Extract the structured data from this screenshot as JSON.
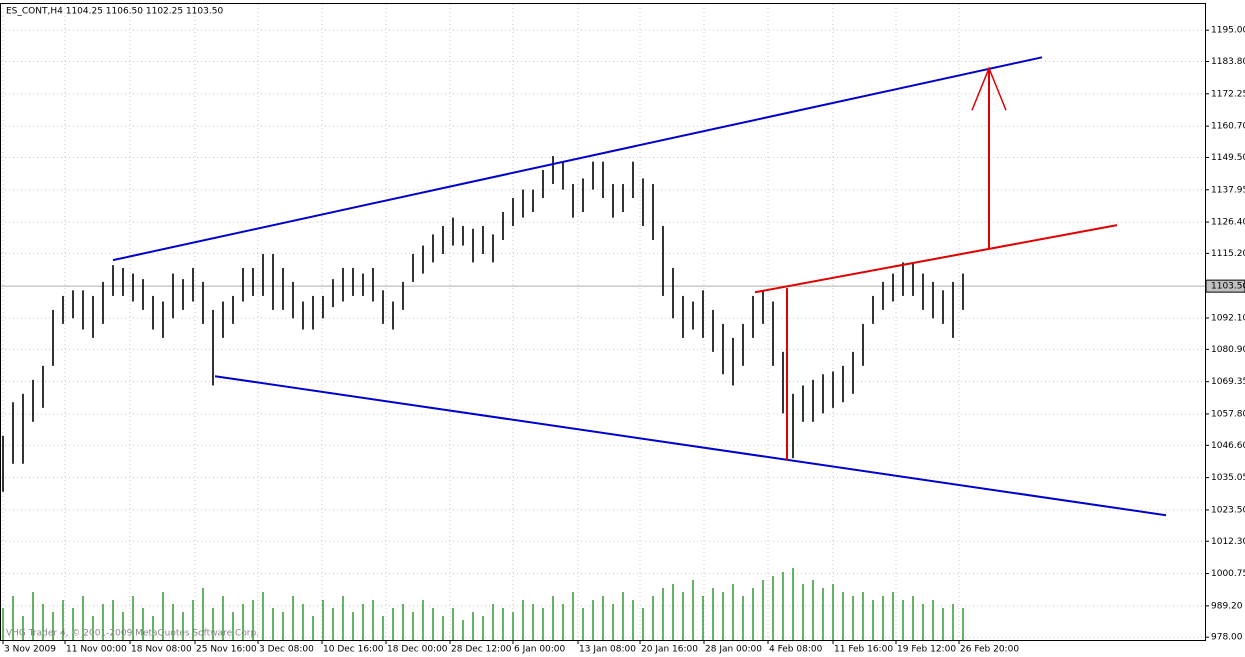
{
  "chart_data": {
    "type": "ohlc",
    "title": "ES_CONT,H4  1104.25 1106.50 1102.25 1103.50",
    "copyright": "VHG Trader 4, © 2001-2009 MetaQuotes Software Corp.",
    "xlim": [
      0,
      120
    ],
    "ylim": [
      977,
      1204
    ],
    "xticks": [
      {
        "value": 0,
        "label": "3 Nov 2009"
      },
      {
        "value": 6.2,
        "label": "11 Nov 00:00"
      },
      {
        "value": 12.7,
        "label": "18 Nov 08:00"
      },
      {
        "value": 19.2,
        "label": "25 Nov 16:00"
      },
      {
        "value": 25.5,
        "label": "3 Dec 08:00"
      },
      {
        "value": 31.9,
        "label": "10 Dec 16:00"
      },
      {
        "value": 38.3,
        "label": "18 Dec 00:00"
      },
      {
        "value": 44.7,
        "label": "28 Dec 12:00"
      },
      {
        "value": 51,
        "label": "6 Jan 00:00"
      },
      {
        "value": 57.5,
        "label": "13 Jan 08:00"
      },
      {
        "value": 63.7,
        "label": "20 Jan 16:00"
      },
      {
        "value": 70.1,
        "label": "28 Jan 00:00"
      },
      {
        "value": 76.5,
        "label": "4 Feb 08:00"
      },
      {
        "value": 83,
        "label": "11 Feb 16:00"
      },
      {
        "value": 89.3,
        "label": "19 Feb 12:00"
      },
      {
        "value": 95.6,
        "label": "26 Feb 20:00"
      }
    ],
    "yticks": [
      {
        "value": 1195,
        "label": "1195.00"
      },
      {
        "value": 1183.8,
        "label": "1183.80"
      },
      {
        "value": 1172.25,
        "label": "1172.25"
      },
      {
        "value": 1160.7,
        "label": "1160.70"
      },
      {
        "value": 1149.5,
        "label": "1149.50"
      },
      {
        "value": 1137.95,
        "label": "1137.95"
      },
      {
        "value": 1126.4,
        "label": "1126.40"
      },
      {
        "value": 1115.2,
        "label": "1115.20"
      },
      {
        "value": 1103.5,
        "label": "1103.50"
      },
      {
        "value": 1092.1,
        "label": "1092.10"
      },
      {
        "value": 1080.9,
        "label": "1080.90"
      },
      {
        "value": 1069.35,
        "label": "1069.35"
      },
      {
        "value": 1057.8,
        "label": "1057.80"
      },
      {
        "value": 1046.6,
        "label": "1046.60"
      },
      {
        "value": 1035.05,
        "label": "1035.05"
      },
      {
        "value": 1023.5,
        "label": "1023.50"
      },
      {
        "value": 1012.3,
        "label": "1012.30"
      },
      {
        "value": 1000.75,
        "label": "1000.75"
      },
      {
        "value": 989.2,
        "label": "989.20"
      },
      {
        "value": 978,
        "label": "978.00"
      }
    ],
    "last_price": 1103.5,
    "grid": true,
    "color": "#000000",
    "volume_color": "#008000",
    "volume_ylim": [
      0,
      100
    ],
    "x": [
      0,
      1,
      2,
      3,
      4,
      5,
      6,
      7,
      8,
      9,
      10,
      11,
      12,
      13,
      14,
      15,
      16,
      17,
      18,
      19,
      20,
      21,
      22,
      23,
      24,
      25,
      26,
      27,
      28,
      29,
      30,
      31,
      32,
      33,
      34,
      35,
      36,
      37,
      38,
      39,
      40,
      41,
      42,
      43,
      44,
      45,
      46,
      47,
      48,
      49,
      50,
      51,
      52,
      53,
      54,
      55,
      56,
      57,
      58,
      59,
      60,
      61,
      62,
      63,
      64,
      65,
      66,
      67,
      68,
      69,
      70,
      71,
      72,
      73,
      74,
      75,
      76,
      77,
      78,
      79,
      80,
      81,
      82,
      83,
      84,
      85,
      86,
      87,
      88,
      89,
      90,
      91,
      92,
      93,
      94,
      95,
      96
    ],
    "high": [
      1050,
      1062,
      1065,
      1070,
      1075,
      1095,
      1100,
      1102,
      1102,
      1100,
      1105,
      1111,
      1110,
      1108,
      1106,
      1100,
      1098,
      1108,
      1106,
      1110,
      1105,
      1095,
      1098,
      1100,
      1110,
      1110,
      1115,
      1115,
      1110,
      1105,
      1098,
      1100,
      1100,
      1106,
      1110,
      1110,
      1108,
      1110,
      1102,
      1098,
      1105,
      1115,
      1118,
      1122,
      1125,
      1128,
      1125,
      1124,
      1125,
      1122,
      1130,
      1135,
      1138,
      1138,
      1145,
      1150,
      1148,
      1140,
      1142,
      1148,
      1148,
      1140,
      1140,
      1148,
      1142,
      1140,
      1125,
      1110,
      1100,
      1098,
      1102,
      1095,
      1090,
      1085,
      1090,
      1100,
      1102,
      1098,
      1080,
      1065,
      1068,
      1070,
      1072,
      1073,
      1075,
      1080,
      1090,
      1100,
      1105,
      1108,
      1112,
      1112,
      1108,
      1105,
      1102,
      1105,
      1108
    ],
    "low": [
      1030,
      1040,
      1040,
      1055,
      1060,
      1075,
      1090,
      1092,
      1088,
      1085,
      1090,
      1100,
      1100,
      1098,
      1095,
      1088,
      1085,
      1092,
      1095,
      1098,
      1090,
      1068,
      1085,
      1090,
      1098,
      1100,
      1100,
      1095,
      1095,
      1092,
      1088,
      1088,
      1092,
      1096,
      1098,
      1100,
      1100,
      1098,
      1090,
      1088,
      1095,
      1105,
      1108,
      1112,
      1115,
      1118,
      1118,
      1112,
      1115,
      1112,
      1120,
      1125,
      1128,
      1130,
      1135,
      1140,
      1138,
      1128,
      1130,
      1138,
      1135,
      1128,
      1130,
      1135,
      1125,
      1120,
      1100,
      1092,
      1085,
      1088,
      1085,
      1080,
      1072,
      1068,
      1075,
      1085,
      1090,
      1075,
      1058,
      1042,
      1055,
      1055,
      1058,
      1060,
      1062,
      1065,
      1075,
      1090,
      1095,
      1098,
      1100,
      1100,
      1095,
      1092,
      1090,
      1085,
      1095
    ],
    "volume": [
      40,
      55,
      30,
      60,
      45,
      35,
      50,
      40,
      55,
      30,
      45,
      50,
      35,
      55,
      40,
      30,
      60,
      45,
      35,
      50,
      65,
      40,
      55,
      35,
      45,
      50,
      60,
      40,
      35,
      55,
      45,
      30,
      50,
      40,
      55,
      35,
      45,
      50,
      30,
      40,
      45,
      35,
      50,
      40,
      30,
      40,
      25,
      35,
      30,
      45,
      40,
      35,
      50,
      45,
      40,
      55,
      45,
      60,
      40,
      50,
      55,
      45,
      60,
      50,
      40,
      55,
      65,
      70,
      60,
      75,
      55,
      65,
      60,
      70,
      55,
      65,
      75,
      80,
      85,
      90,
      70,
      75,
      65,
      70,
      60,
      55,
      60,
      50,
      55,
      60,
      50,
      55,
      45,
      50,
      40,
      45,
      40
    ],
    "lines": [
      {
        "color": "#0000cc",
        "x": [
          11,
          103.9
        ],
        "y": [
          1112.8,
          1185.3
        ]
      },
      {
        "color": "#0000cc",
        "x": [
          21.2,
          116.3
        ],
        "y": [
          1071.3,
          1021.6
        ]
      },
      {
        "color": "#e00000",
        "x": [
          75.2,
          111.4
        ],
        "y": [
          1101.3,
          1125.3
        ]
      },
      {
        "color": "#e00000",
        "x": [
          78.4,
          78.4
        ],
        "y": [
          1102.8,
          1041.3
        ]
      },
      {
        "color": "#e00000",
        "x": [
          98.6,
          98.6
        ],
        "y": [
          1117.1,
          1181.4
        ],
        "arrow": true
      }
    ]
  }
}
